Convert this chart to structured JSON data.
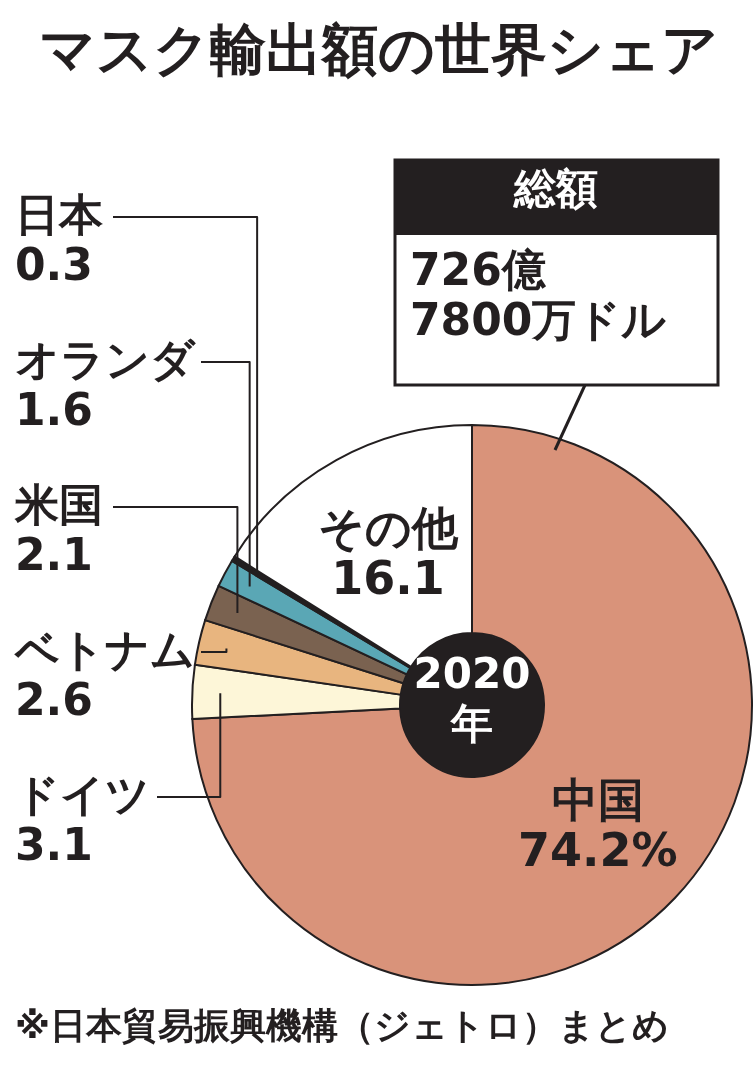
{
  "chart_data": {
    "type": "donut",
    "title": "マスク輸出額の世界シェア",
    "categories": [
      "中国",
      "ドイツ",
      "ベトナム",
      "米国",
      "オランダ",
      "日本",
      "その他"
    ],
    "values": [
      74.2,
      3.1,
      2.6,
      2.1,
      1.6,
      0.3,
      16.1
    ],
    "colors": [
      "#d9937a",
      "#fdf6d8",
      "#e8b57f",
      "#7a6250",
      "#5aa7b5",
      "#231f20",
      "#ffffff"
    ],
    "value_labels": [
      "74.2%",
      "3.1",
      "2.6",
      "2.1",
      "1.6",
      "0.3",
      "16.1"
    ],
    "annotations": [
      "総額",
      "726億\n7800万ドル",
      "2020\n年",
      "※日本貿易振興機構（ジェトロ）まとめ"
    ]
  }
}
